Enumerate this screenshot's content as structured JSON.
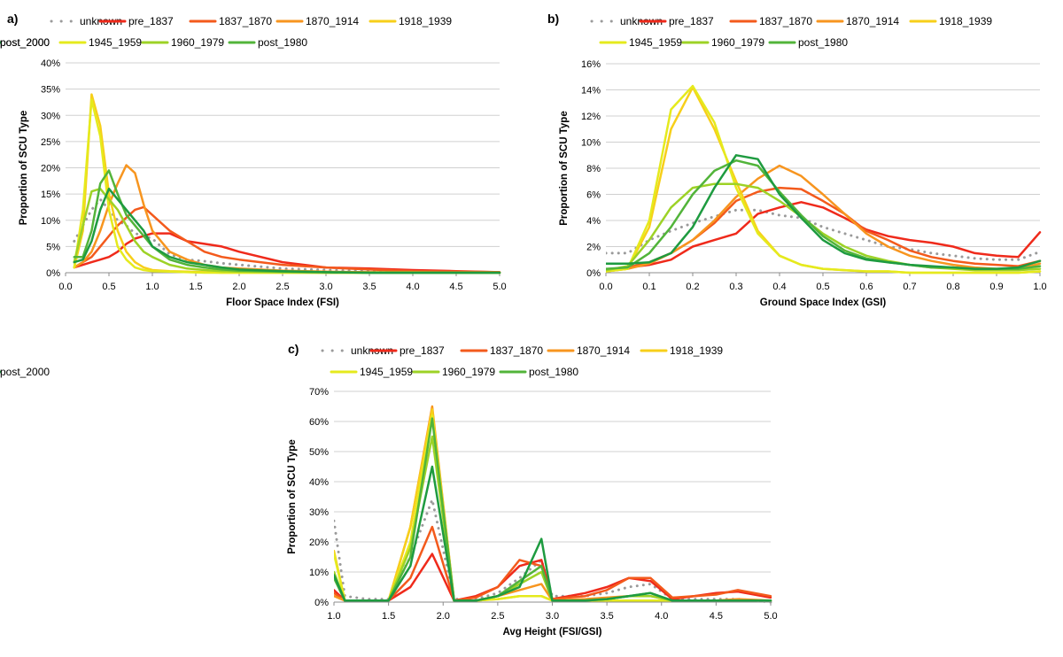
{
  "series_styles": [
    {
      "name": "unknown",
      "color": "#9a9a9a",
      "dotted": true
    },
    {
      "name": "pre_1837",
      "color": "#ef2a1b"
    },
    {
      "name": "1837_1870",
      "color": "#f35a1c"
    },
    {
      "name": "1870_1914",
      "color": "#f7951f"
    },
    {
      "name": "1918_1939",
      "color": "#f7cf1a"
    },
    {
      "name": "1945_1959",
      "color": "#e5ea1d"
    },
    {
      "name": "1960_1979",
      "color": "#9dd226"
    },
    {
      "name": "post_1980",
      "color": "#52b43a"
    },
    {
      "name": "post_2000",
      "color": "#1e9b40"
    }
  ],
  "chart_data": [
    {
      "panel_label": "a)",
      "type": "line",
      "title": "",
      "xlabel": "Floor Space Index (FSI)",
      "ylabel": "Proportion of SCU Type",
      "xlim": [
        0,
        5
      ],
      "ylim": [
        0,
        40
      ],
      "xticks": [
        "0.0",
        "0.5",
        "1.0",
        "1.5",
        "2.0",
        "2.5",
        "3.0",
        "3.5",
        "4.0",
        "4.5",
        "5.0"
      ],
      "yticks": [
        "0%",
        "5%",
        "10%",
        "15%",
        "20%",
        "25%",
        "30%",
        "35%",
        "40%"
      ],
      "x": [
        0.1,
        0.2,
        0.3,
        0.4,
        0.5,
        0.6,
        0.7,
        0.8,
        0.9,
        1.0,
        1.2,
        1.4,
        1.6,
        1.8,
        2.0,
        2.5,
        3.0,
        3.5,
        4.0,
        4.5,
        5.0
      ],
      "series": [
        {
          "name": "unknown",
          "values": [
            6,
            9,
            12,
            14,
            12,
            10,
            9,
            7.5,
            7,
            6.5,
            3.5,
            2.5,
            2.2,
            1.8,
            1.5,
            0.8,
            0.5,
            0.3,
            0.2,
            0.1,
            0
          ]
        },
        {
          "name": "pre_1837",
          "values": [
            1,
            1.5,
            2,
            2.5,
            3,
            4,
            5.5,
            6.5,
            7,
            7.5,
            7.5,
            6,
            5.5,
            5,
            4,
            2,
            1,
            0.8,
            0.5,
            0.3,
            0.1
          ]
        },
        {
          "name": "1837_1870",
          "values": [
            1,
            2,
            3,
            5,
            7,
            9,
            10.5,
            12,
            12.5,
            11,
            8,
            6,
            4,
            3,
            2.5,
            1.5,
            1,
            0.6,
            0.3,
            0.2,
            0.1
          ]
        },
        {
          "name": "1870_1914",
          "values": [
            1,
            2,
            4,
            8,
            13,
            17,
            20.5,
            19,
            13,
            8,
            4,
            2.5,
            1.5,
            1,
            0.8,
            0.4,
            0.2,
            0.1,
            0.1,
            0,
            0
          ]
        },
        {
          "name": "1918_1939",
          "values": [
            1,
            8,
            34,
            28,
            15,
            8,
            4,
            2,
            1,
            0.5,
            0.3,
            0.2,
            0.1,
            0,
            0,
            0,
            0,
            0,
            0,
            0,
            0
          ]
        },
        {
          "name": "1945_1959",
          "values": [
            1,
            12,
            33,
            26,
            12,
            5,
            2.5,
            1,
            0.5,
            0.3,
            0.2,
            0.1,
            0,
            0,
            0,
            0,
            0,
            0,
            0,
            0,
            0
          ]
        },
        {
          "name": "1960_1979",
          "values": [
            2,
            9,
            15.5,
            16,
            14,
            12,
            9,
            6,
            4,
            3,
            1.5,
            0.8,
            0.5,
            0.3,
            0.2,
            0.1,
            0,
            0,
            0,
            0,
            0
          ]
        },
        {
          "name": "post_1980",
          "values": [
            3,
            3,
            8,
            17,
            19.5,
            15,
            11,
            9,
            7,
            5,
            2.5,
            1.5,
            1,
            0.6,
            0.4,
            0.2,
            0.1,
            0,
            0,
            0,
            0
          ]
        },
        {
          "name": "post_2000",
          "values": [
            2,
            2.5,
            6,
            12,
            16,
            14,
            12,
            10,
            8,
            5,
            3,
            2,
            1.5,
            1,
            0.6,
            0.3,
            0.1,
            0,
            0,
            0,
            0
          ]
        }
      ]
    },
    {
      "panel_label": "b)",
      "type": "line",
      "title": "",
      "xlabel": "Ground Space Index (GSI)",
      "ylabel": "Proportion of SCU Type",
      "xlim": [
        0,
        1
      ],
      "ylim": [
        0,
        16
      ],
      "xticks": [
        "0.0",
        "0.1",
        "0.2",
        "0.3",
        "0.4",
        "0.5",
        "0.6",
        "0.7",
        "0.8",
        "0.9",
        "1.0"
      ],
      "yticks": [
        "0%",
        "2%",
        "4%",
        "6%",
        "8%",
        "10%",
        "12%",
        "14%",
        "16%"
      ],
      "x": [
        0.0,
        0.05,
        0.1,
        0.15,
        0.2,
        0.25,
        0.3,
        0.35,
        0.4,
        0.45,
        0.5,
        0.55,
        0.6,
        0.65,
        0.7,
        0.75,
        0.8,
        0.85,
        0.9,
        0.95,
        1.0
      ],
      "series": [
        {
          "name": "unknown",
          "values": [
            1.5,
            1.5,
            2.5,
            3.2,
            3.8,
            4.3,
            4.8,
            4.8,
            4.4,
            4.2,
            3.5,
            3,
            2.5,
            2,
            1.8,
            1.5,
            1.3,
            1.1,
            1,
            1,
            1.6
          ]
        },
        {
          "name": "pre_1837",
          "values": [
            0.2,
            0.4,
            0.6,
            1,
            2,
            2.5,
            3,
            4.5,
            5,
            5.4,
            5,
            4.2,
            3.3,
            2.8,
            2.5,
            2.3,
            2,
            1.5,
            1.3,
            1.2,
            3.1
          ]
        },
        {
          "name": "1837_1870",
          "values": [
            0.2,
            0.4,
            0.8,
            1.5,
            2.5,
            3.8,
            5.5,
            6.2,
            6.5,
            6.4,
            5.5,
            4.5,
            3.2,
            2.5,
            1.7,
            1.2,
            0.9,
            0.7,
            0.6,
            0.5,
            0.9
          ]
        },
        {
          "name": "1870_1914",
          "values": [
            0.1,
            0.3,
            0.7,
            1.5,
            2.5,
            4,
            5.8,
            7.2,
            8.2,
            7.4,
            6,
            4.5,
            3,
            2,
            1.3,
            0.9,
            0.6,
            0.4,
            0.3,
            0.3,
            0.7
          ]
        },
        {
          "name": "1918_1939",
          "values": [
            0.1,
            0.3,
            3.5,
            11,
            14.2,
            11,
            7,
            3.2,
            1.3,
            0.6,
            0.3,
            0.2,
            0.1,
            0.1,
            0,
            0,
            0,
            0,
            0,
            0,
            0.1
          ]
        },
        {
          "name": "1945_1959",
          "values": [
            0.1,
            0.3,
            4,
            12.5,
            14.3,
            11.5,
            6.5,
            3,
            1.3,
            0.6,
            0.3,
            0.2,
            0.1,
            0.1,
            0,
            0,
            0,
            0,
            0,
            0,
            0.1
          ]
        },
        {
          "name": "1960_1979",
          "values": [
            0.2,
            0.5,
            2.5,
            5,
            6.5,
            6.8,
            6.8,
            6.5,
            5.5,
            4.3,
            3,
            2,
            1.3,
            0.9,
            0.6,
            0.4,
            0.3,
            0.2,
            0.2,
            0.2,
            0.3
          ]
        },
        {
          "name": "post_1980",
          "values": [
            0.3,
            0.4,
            1.5,
            3.5,
            6,
            7.8,
            8.6,
            8.2,
            6.2,
            4.4,
            2.8,
            1.7,
            1.1,
            0.8,
            0.6,
            0.4,
            0.4,
            0.3,
            0.3,
            0.3,
            0.5
          ]
        },
        {
          "name": "post_2000",
          "values": [
            0.7,
            0.7,
            0.8,
            1.5,
            3.5,
            6.5,
            9,
            8.7,
            6,
            4.2,
            2.5,
            1.5,
            1,
            0.8,
            0.6,
            0.5,
            0.4,
            0.3,
            0.3,
            0.4,
            0.9
          ]
        }
      ]
    },
    {
      "panel_label": "c)",
      "type": "line",
      "title": "",
      "xlabel": "Avg Height (FSI/GSI)",
      "ylabel": "Proportion of SCU Type",
      "xlim": [
        1,
        5
      ],
      "ylim": [
        0,
        70
      ],
      "xticks": [
        "1.0",
        "1.5",
        "2.0",
        "2.5",
        "3.0",
        "3.5",
        "4.0",
        "4.5",
        "5.0"
      ],
      "yticks": [
        "0%",
        "10%",
        "20%",
        "30%",
        "40%",
        "50%",
        "60%",
        "70%"
      ],
      "x": [
        1.0,
        1.1,
        1.3,
        1.5,
        1.7,
        1.9,
        2.1,
        2.3,
        2.5,
        2.7,
        2.9,
        3.0,
        3.3,
        3.5,
        3.7,
        3.9,
        4.1,
        4.3,
        4.5,
        4.7,
        5.0
      ],
      "series": [
        {
          "name": "unknown",
          "values": [
            27,
            2,
            1,
            1,
            15,
            34,
            1,
            1,
            3,
            8,
            14,
            2,
            2,
            3,
            5,
            6,
            1,
            1,
            1,
            1,
            0
          ]
        },
        {
          "name": "pre_1837",
          "values": [
            4,
            0.5,
            0.5,
            0.5,
            5,
            16,
            0.5,
            2,
            5,
            12,
            14,
            1,
            3,
            5,
            8,
            7,
            1,
            2,
            3,
            3.5,
            1.5
          ]
        },
        {
          "name": "1837_1870",
          "values": [
            3,
            0.5,
            0.5,
            0.5,
            8,
            25,
            0.5,
            1.5,
            5,
            14,
            12,
            1,
            2,
            4,
            8,
            8,
            1.5,
            2,
            2.5,
            4,
            2
          ]
        },
        {
          "name": "1870_1914",
          "values": [
            2,
            0.5,
            0.5,
            0.5,
            25,
            65,
            0.5,
            0.5,
            2,
            4,
            6,
            0.5,
            1,
            1.5,
            2,
            2,
            0.5,
            0.5,
            0.5,
            1,
            0.5
          ]
        },
        {
          "name": "1918_1939",
          "values": [
            17,
            0.5,
            0.5,
            0.5,
            25,
            64,
            0.5,
            0.5,
            1,
            2,
            2,
            0.5,
            0.5,
            0.5,
            0.5,
            0.5,
            0.5,
            0.5,
            0.5,
            0.5,
            0.5
          ]
        },
        {
          "name": "1945_1959",
          "values": [
            16,
            0.5,
            0.5,
            0.5,
            20,
            62,
            0.5,
            0.5,
            1,
            2,
            2,
            0.5,
            0.5,
            0.5,
            0.5,
            0.5,
            0.5,
            0.5,
            0.5,
            0.5,
            0.5
          ]
        },
        {
          "name": "1960_1979",
          "values": [
            10,
            0.5,
            0.5,
            0.5,
            18,
            55,
            0.5,
            0.5,
            2,
            6,
            10,
            0.5,
            0.5,
            1,
            2,
            2,
            0.5,
            0.5,
            0.5,
            0.5,
            0.5
          ]
        },
        {
          "name": "post_1980",
          "values": [
            8,
            0.5,
            0.5,
            0.5,
            15,
            61,
            0.5,
            0.5,
            2,
            7,
            12,
            0.5,
            0.5,
            1,
            2,
            3,
            0.5,
            0.5,
            0.5,
            0.5,
            0.5
          ]
        },
        {
          "name": "post_2000",
          "values": [
            9,
            0.5,
            0.5,
            0.5,
            12,
            45,
            0.5,
            0.5,
            2,
            5,
            21,
            0.5,
            0.5,
            1,
            2,
            3,
            0.5,
            0.5,
            0.5,
            0.5,
            0.5
          ]
        }
      ]
    }
  ]
}
